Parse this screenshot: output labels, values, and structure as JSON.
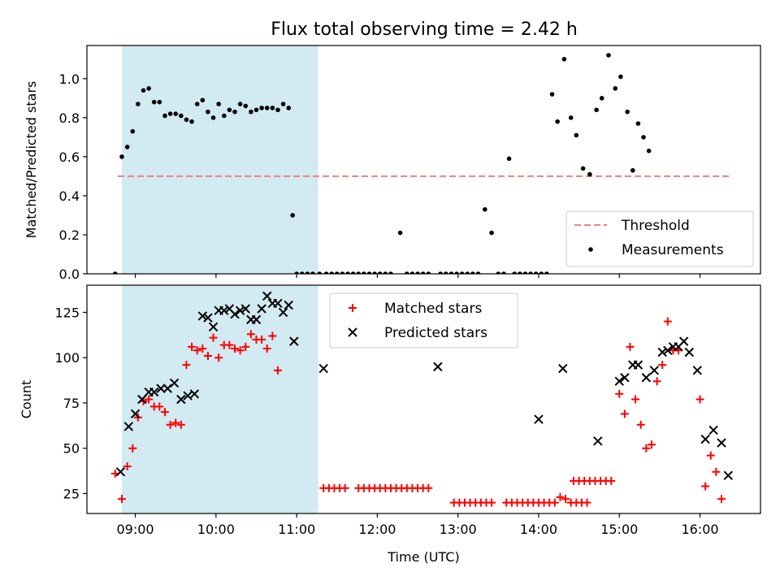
{
  "title": "Flux total observing time = 2.42 h",
  "colors": {
    "shade": "#add8e6",
    "threshold": "#f08080",
    "measurement": "#000000",
    "matched": "#ff0000",
    "predicted": "#000000"
  },
  "chart_data": [
    {
      "type": "scatter",
      "ylabel": "Matched/Predicted stars",
      "xlabel": "",
      "xlim": [
        "08:24",
        "16:45"
      ],
      "ylim": [
        0,
        1.17
      ],
      "yticks": [
        "0.0",
        "0.2",
        "0.4",
        "0.6",
        "0.8",
        "1.0"
      ],
      "ytick_values": [
        0,
        0.2,
        0.4,
        0.6,
        0.8,
        1.0
      ],
      "xtick_values": [
        "09:00",
        "10:00",
        "11:00",
        "12:00",
        "13:00",
        "14:00",
        "15:00",
        "16:00"
      ],
      "shaded_span": [
        "08:50",
        "11:16"
      ],
      "threshold": {
        "name": "Threshold",
        "y": 0.5,
        "x": [
          "08:47",
          "16:22"
        ]
      },
      "legend": {
        "position": "lower-right",
        "entries": [
          "Threshold",
          "Measurements"
        ]
      },
      "series": [
        {
          "name": "Measurements",
          "marker": "dot",
          "points": [
            [
              "08:45",
              0.0
            ],
            [
              "08:50",
              0.6
            ],
            [
              "08:54",
              0.65
            ],
            [
              "08:58",
              0.73
            ],
            [
              "09:02",
              0.87
            ],
            [
              "09:06",
              0.94
            ],
            [
              "09:10",
              0.95
            ],
            [
              "09:14",
              0.88
            ],
            [
              "09:18",
              0.88
            ],
            [
              "09:22",
              0.81
            ],
            [
              "09:26",
              0.82
            ],
            [
              "09:30",
              0.82
            ],
            [
              "09:34",
              0.81
            ],
            [
              "09:38",
              0.79
            ],
            [
              "09:42",
              0.78
            ],
            [
              "09:46",
              0.87
            ],
            [
              "09:50",
              0.89
            ],
            [
              "09:54",
              0.83
            ],
            [
              "09:58",
              0.8
            ],
            [
              "10:02",
              0.87
            ],
            [
              "10:06",
              0.81
            ],
            [
              "10:10",
              0.84
            ],
            [
              "10:14",
              0.83
            ],
            [
              "10:18",
              0.87
            ],
            [
              "10:22",
              0.86
            ],
            [
              "10:26",
              0.83
            ],
            [
              "10:30",
              0.84
            ],
            [
              "10:34",
              0.85
            ],
            [
              "10:38",
              0.85
            ],
            [
              "10:42",
              0.85
            ],
            [
              "10:46",
              0.84
            ],
            [
              "10:50",
              0.87
            ],
            [
              "10:54",
              0.85
            ],
            [
              "10:57",
              0.3
            ],
            [
              "11:00",
              0.0
            ],
            [
              "11:04",
              0.0
            ],
            [
              "11:08",
              0.0
            ],
            [
              "11:12",
              0.0
            ],
            [
              "11:17",
              0.0
            ],
            [
              "11:22",
              0.0
            ],
            [
              "11:26",
              0.0
            ],
            [
              "11:30",
              0.0
            ],
            [
              "11:34",
              0.0
            ],
            [
              "11:38",
              0.0
            ],
            [
              "11:42",
              0.0
            ],
            [
              "11:46",
              0.0
            ],
            [
              "11:50",
              0.0
            ],
            [
              "11:54",
              0.0
            ],
            [
              "11:58",
              0.0
            ],
            [
              "12:02",
              0.0
            ],
            [
              "12:06",
              0.0
            ],
            [
              "12:10",
              0.0
            ],
            [
              "12:17",
              0.21
            ],
            [
              "12:22",
              0.0
            ],
            [
              "12:26",
              0.0
            ],
            [
              "12:30",
              0.0
            ],
            [
              "12:34",
              0.0
            ],
            [
              "12:38",
              0.0
            ],
            [
              "12:47",
              0.0
            ],
            [
              "12:51",
              0.0
            ],
            [
              "12:55",
              0.0
            ],
            [
              "12:59",
              0.0
            ],
            [
              "13:03",
              0.0
            ],
            [
              "13:07",
              0.0
            ],
            [
              "13:11",
              0.0
            ],
            [
              "13:15",
              0.0
            ],
            [
              "13:20",
              0.33
            ],
            [
              "13:25",
              0.21
            ],
            [
              "13:30",
              0.0
            ],
            [
              "13:34",
              0.0
            ],
            [
              "13:38",
              0.59
            ],
            [
              "13:42",
              0.0
            ],
            [
              "13:46",
              0.0
            ],
            [
              "13:50",
              0.0
            ],
            [
              "13:54",
              0.0
            ],
            [
              "13:58",
              0.0
            ],
            [
              "14:02",
              0.0
            ],
            [
              "14:06",
              0.0
            ],
            [
              "14:10",
              0.92
            ],
            [
              "14:14",
              0.78
            ],
            [
              "14:19",
              1.1
            ],
            [
              "14:24",
              0.8
            ],
            [
              "14:28",
              0.71
            ],
            [
              "14:33",
              0.54
            ],
            [
              "14:38",
              0.51
            ],
            [
              "14:43",
              0.84
            ],
            [
              "14:47",
              0.9
            ],
            [
              "14:52",
              1.12
            ],
            [
              "14:57",
              0.95
            ],
            [
              "15:01",
              1.01
            ],
            [
              "15:06",
              0.83
            ],
            [
              "15:10",
              0.53
            ],
            [
              "15:14",
              0.77
            ],
            [
              "15:18",
              0.7
            ],
            [
              "15:22",
              0.63
            ]
          ]
        }
      ]
    },
    {
      "type": "scatter",
      "xlabel": "Time (UTC)",
      "ylabel": "Count",
      "xlim": [
        "08:24",
        "16:45"
      ],
      "ylim": [
        14,
        140
      ],
      "yticks": [
        "25",
        "50",
        "75",
        "100",
        "125"
      ],
      "ytick_values": [
        25,
        50,
        75,
        100,
        125
      ],
      "xticks": [
        "09:00",
        "10:00",
        "11:00",
        "12:00",
        "13:00",
        "14:00",
        "15:00",
        "16:00"
      ],
      "xtick_values": [
        "09:00",
        "10:00",
        "11:00",
        "12:00",
        "13:00",
        "14:00",
        "15:00",
        "16:00"
      ],
      "shaded_span": [
        "08:50",
        "11:16"
      ],
      "legend": {
        "position": "upper-center",
        "entries": [
          "Matched stars",
          "Predicted stars"
        ]
      },
      "series": [
        {
          "name": "Matched stars",
          "marker": "plus",
          "points": [
            [
              "08:45",
              36
            ],
            [
              "08:50",
              22
            ],
            [
              "08:54",
              40
            ],
            [
              "08:58",
              50
            ],
            [
              "09:02",
              67
            ],
            [
              "09:06",
              76
            ],
            [
              "09:10",
              77
            ],
            [
              "09:14",
              73
            ],
            [
              "09:18",
              73
            ],
            [
              "09:22",
              70
            ],
            [
              "09:26",
              63
            ],
            [
              "09:30",
              64
            ],
            [
              "09:34",
              63
            ],
            [
              "09:38",
              96
            ],
            [
              "09:42",
              106
            ],
            [
              "09:46",
              104
            ],
            [
              "09:50",
              105
            ],
            [
              "09:54",
              101
            ],
            [
              "09:58",
              111
            ],
            [
              "10:02",
              100
            ],
            [
              "10:06",
              107
            ],
            [
              "10:10",
              107
            ],
            [
              "10:14",
              105
            ],
            [
              "10:18",
              104
            ],
            [
              "10:22",
              106
            ],
            [
              "10:26",
              113
            ],
            [
              "10:30",
              110
            ],
            [
              "10:34",
              110
            ],
            [
              "10:38",
              105
            ],
            [
              "10:42",
              112
            ],
            [
              "10:46",
              93
            ],
            [
              "11:20",
              28
            ],
            [
              "11:24",
              28
            ],
            [
              "11:28",
              28
            ],
            [
              "11:32",
              28
            ],
            [
              "11:36",
              28
            ],
            [
              "11:46",
              28
            ],
            [
              "11:50",
              28
            ],
            [
              "11:54",
              28
            ],
            [
              "11:58",
              28
            ],
            [
              "12:02",
              28
            ],
            [
              "12:06",
              28
            ],
            [
              "12:10",
              28
            ],
            [
              "12:14",
              28
            ],
            [
              "12:18",
              28
            ],
            [
              "12:22",
              28
            ],
            [
              "12:26",
              28
            ],
            [
              "12:30",
              28
            ],
            [
              "12:34",
              28
            ],
            [
              "12:38",
              28
            ],
            [
              "12:57",
              20
            ],
            [
              "13:01",
              20
            ],
            [
              "13:05",
              20
            ],
            [
              "13:09",
              20
            ],
            [
              "13:13",
              20
            ],
            [
              "13:17",
              20
            ],
            [
              "13:21",
              20
            ],
            [
              "13:25",
              20
            ],
            [
              "13:36",
              20
            ],
            [
              "13:40",
              20
            ],
            [
              "13:44",
              20
            ],
            [
              "13:48",
              20
            ],
            [
              "13:52",
              20
            ],
            [
              "13:56",
              20
            ],
            [
              "14:00",
              20
            ],
            [
              "14:04",
              20
            ],
            [
              "14:08",
              20
            ],
            [
              "14:12",
              20
            ],
            [
              "14:16",
              23
            ],
            [
              "14:20",
              22
            ],
            [
              "14:24",
              20
            ],
            [
              "14:28",
              20
            ],
            [
              "14:32",
              20
            ],
            [
              "14:36",
              20
            ],
            [
              "14:26",
              32
            ],
            [
              "14:30",
              32
            ],
            [
              "14:34",
              32
            ],
            [
              "14:38",
              32
            ],
            [
              "14:42",
              32
            ],
            [
              "14:46",
              32
            ],
            [
              "14:50",
              32
            ],
            [
              "14:54",
              32
            ],
            [
              "15:00",
              80
            ],
            [
              "15:04",
              69
            ],
            [
              "15:08",
              106
            ],
            [
              "15:12",
              77
            ],
            [
              "15:16",
              63
            ],
            [
              "15:20",
              50
            ],
            [
              "15:24",
              52
            ],
            [
              "15:28",
              87
            ],
            [
              "15:32",
              96
            ],
            [
              "15:36",
              120
            ],
            [
              "15:40",
              104
            ],
            [
              "15:44",
              104
            ],
            [
              "16:00",
              77
            ],
            [
              "16:04",
              29
            ],
            [
              "16:08",
              46
            ],
            [
              "16:12",
              37
            ],
            [
              "16:16",
              22
            ]
          ]
        },
        {
          "name": "Predicted stars",
          "marker": "x",
          "points": [
            [
              "08:49",
              37
            ],
            [
              "08:55",
              62
            ],
            [
              "09:00",
              69
            ],
            [
              "09:05",
              77
            ],
            [
              "09:10",
              81
            ],
            [
              "09:14",
              81
            ],
            [
              "09:19",
              83
            ],
            [
              "09:24",
              83
            ],
            [
              "09:29",
              86
            ],
            [
              "09:34",
              77
            ],
            [
              "09:39",
              79
            ],
            [
              "09:44",
              80
            ],
            [
              "09:50",
              123
            ],
            [
              "09:54",
              122
            ],
            [
              "09:58",
              117
            ],
            [
              "10:02",
              126
            ],
            [
              "10:06",
              126
            ],
            [
              "10:10",
              127
            ],
            [
              "10:14",
              124
            ],
            [
              "10:18",
              126
            ],
            [
              "10:22",
              127
            ],
            [
              "10:26",
              121
            ],
            [
              "10:30",
              121
            ],
            [
              "10:34",
              127
            ],
            [
              "10:38",
              134
            ],
            [
              "10:42",
              130
            ],
            [
              "10:46",
              130
            ],
            [
              "10:50",
              125
            ],
            [
              "10:54",
              129
            ],
            [
              "10:58",
              109
            ],
            [
              "11:20",
              94
            ],
            [
              "12:45",
              95
            ],
            [
              "14:00",
              66
            ],
            [
              "14:18",
              94
            ],
            [
              "14:44",
              54
            ],
            [
              "15:00",
              87
            ],
            [
              "15:04",
              89
            ],
            [
              "15:10",
              96
            ],
            [
              "15:14",
              96
            ],
            [
              "15:20",
              89
            ],
            [
              "15:26",
              93
            ],
            [
              "15:32",
              103
            ],
            [
              "15:36",
              104
            ],
            [
              "15:40",
              106
            ],
            [
              "15:44",
              106
            ],
            [
              "15:48",
              109
            ],
            [
              "15:52",
              103
            ],
            [
              "15:58",
              93
            ],
            [
              "16:04",
              55
            ],
            [
              "16:10",
              60
            ],
            [
              "16:16",
              53
            ],
            [
              "16:21",
              35
            ]
          ]
        }
      ]
    }
  ]
}
